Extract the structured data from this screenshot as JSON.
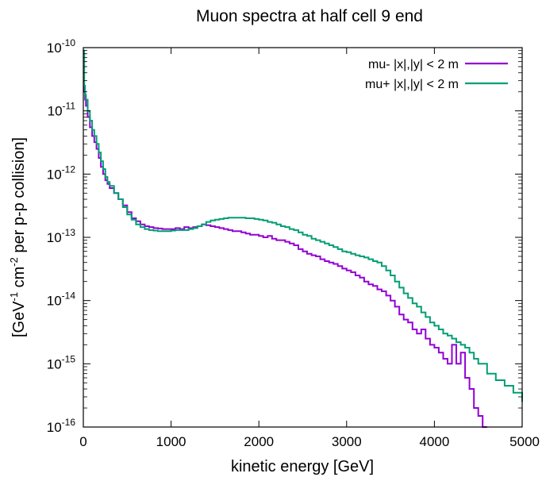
{
  "chart_data": {
    "type": "line",
    "title": "Muon spectra at half cell 9 end",
    "xlabel": "kinetic energy [GeV]",
    "ylabel": {
      "prefix": "[GeV",
      "sup1": "-1",
      "mid": " cm",
      "sup2": "-2",
      "suffix": " per p-p collision]"
    },
    "xlim": [
      0,
      5000
    ],
    "ylim": [
      1e-16,
      1e-10
    ],
    "yscale": "log",
    "grid": false,
    "legend_position": "top-right",
    "x_ticks": [
      {
        "value": 0,
        "label": "0"
      },
      {
        "value": 1000,
        "label": "1000"
      },
      {
        "value": 2000,
        "label": "2000"
      },
      {
        "value": 3000,
        "label": "3000"
      },
      {
        "value": 4000,
        "label": "4000"
      },
      {
        "value": 5000,
        "label": "5000"
      }
    ],
    "y_ticks": [
      {
        "value": 1e-16,
        "base": "10",
        "exp": "-16"
      },
      {
        "value": 1e-15,
        "base": "10",
        "exp": "-15"
      },
      {
        "value": 1e-14,
        "base": "10",
        "exp": "-14"
      },
      {
        "value": 1e-13,
        "base": "10",
        "exp": "-13"
      },
      {
        "value": 1e-12,
        "base": "10",
        "exp": "-12"
      },
      {
        "value": 1e-11,
        "base": "10",
        "exp": "-11"
      },
      {
        "value": 1e-10,
        "base": "10",
        "exp": "-10"
      }
    ],
    "series": [
      {
        "name": "mu- |x|,|y| < 2 m",
        "color": "#9400d3",
        "x": [
          0,
          10,
          20,
          30,
          50,
          75,
          100,
          125,
          150,
          175,
          200,
          225,
          250,
          275,
          300,
          350,
          400,
          450,
          500,
          550,
          600,
          650,
          700,
          750,
          800,
          850,
          900,
          950,
          1000,
          1050,
          1100,
          1150,
          1200,
          1250,
          1300,
          1350,
          1400,
          1450,
          1500,
          1550,
          1600,
          1650,
          1700,
          1750,
          1800,
          1850,
          1900,
          1950,
          2000,
          2050,
          2100,
          2150,
          2200,
          2250,
          2300,
          2350,
          2400,
          2450,
          2500,
          2550,
          2600,
          2650,
          2700,
          2750,
          2800,
          2850,
          2900,
          2950,
          3000,
          3050,
          3100,
          3150,
          3200,
          3250,
          3300,
          3350,
          3400,
          3450,
          3500,
          3550,
          3600,
          3650,
          3700,
          3750,
          3800,
          3850,
          3900,
          3950,
          4000,
          4050,
          4100,
          4150,
          4200,
          4250,
          4300,
          4350,
          4400,
          4450,
          4500,
          4550
        ],
        "y": [
          8e-11,
          2e-11,
          1.5e-11,
          1.2e-11,
          8e-12,
          5.5e-12,
          4e-12,
          3.2e-12,
          2.5e-12,
          1.8e-12,
          1.3e-12,
          1e-12,
          8e-13,
          7e-13,
          6e-13,
          5e-13,
          4e-13,
          3.2e-13,
          2.5e-13,
          2e-13,
          1.8e-13,
          1.6e-13,
          1.5e-13,
          1.45e-13,
          1.4e-13,
          1.38e-13,
          1.35e-13,
          1.35e-13,
          1.35e-13,
          1.4e-13,
          1.35e-13,
          1.45e-13,
          1.4e-13,
          1.45e-13,
          1.5e-13,
          1.6e-13,
          1.55e-13,
          1.5e-13,
          1.45e-13,
          1.4e-13,
          1.35e-13,
          1.3e-13,
          1.25e-13,
          1.25e-13,
          1.2e-13,
          1.15e-13,
          1.1e-13,
          1.1e-13,
          1.05e-13,
          1e-13,
          1.05e-13,
          9.5e-14,
          9e-14,
          9e-14,
          8.5e-14,
          8e-14,
          7.5e-14,
          6.5e-14,
          6e-14,
          5.5e-14,
          5.2e-14,
          5e-14,
          4.5e-14,
          4.2e-14,
          4e-14,
          3.8e-14,
          3.5e-14,
          3.2e-14,
          3e-14,
          2.8e-14,
          2.5e-14,
          2.3e-14,
          2e-14,
          1.8e-14,
          1.7e-14,
          1.5e-14,
          1.4e-14,
          1.2e-14,
          1e-14,
          8e-15,
          6e-15,
          5e-15,
          4.5e-15,
          3.5e-15,
          3e-15,
          3.5e-15,
          2.5e-15,
          2e-15,
          1.8e-15,
          1.5e-15,
          1.2e-15,
          1e-15,
          2e-15,
          1e-15,
          1.5e-15,
          6e-16,
          4e-16,
          2e-16,
          1.5e-16,
          1e-16
        ]
      },
      {
        "name": "mu+ |x|,|y| < 2 m",
        "color": "#009e73",
        "x": [
          0,
          10,
          20,
          30,
          50,
          75,
          100,
          125,
          150,
          175,
          200,
          225,
          250,
          275,
          300,
          350,
          400,
          450,
          500,
          550,
          600,
          650,
          700,
          750,
          800,
          850,
          900,
          950,
          1000,
          1050,
          1100,
          1150,
          1200,
          1250,
          1300,
          1350,
          1400,
          1450,
          1500,
          1550,
          1600,
          1650,
          1700,
          1750,
          1800,
          1850,
          1900,
          1950,
          2000,
          2050,
          2100,
          2150,
          2200,
          2250,
          2300,
          2350,
          2400,
          2450,
          2500,
          2550,
          2600,
          2650,
          2700,
          2750,
          2800,
          2850,
          2900,
          2950,
          3000,
          3050,
          3100,
          3150,
          3200,
          3250,
          3300,
          3350,
          3400,
          3450,
          3500,
          3550,
          3600,
          3650,
          3700,
          3750,
          3800,
          3850,
          3900,
          3950,
          4000,
          4050,
          4100,
          4150,
          4200,
          4250,
          4300,
          4350,
          4400,
          4450,
          4500,
          4600,
          4700,
          4800,
          4900,
          5000
        ],
        "y": [
          9e-11,
          2.5e-11,
          1.8e-11,
          1.5e-11,
          1e-11,
          7e-12,
          5e-12,
          4e-12,
          3e-12,
          2.2e-12,
          1.6e-12,
          1.2e-12,
          9e-13,
          7.5e-13,
          6.5e-13,
          5e-13,
          4e-13,
          3e-13,
          2.3e-13,
          1.9e-13,
          1.6e-13,
          1.45e-13,
          1.35e-13,
          1.3e-13,
          1.28e-13,
          1.25e-13,
          1.25e-13,
          1.25e-13,
          1.28e-13,
          1.3e-13,
          1.3e-13,
          1.3e-13,
          1.35e-13,
          1.4e-13,
          1.5e-13,
          1.6e-13,
          1.75e-13,
          1.85e-13,
          1.9e-13,
          1.95e-13,
          2e-13,
          2.05e-13,
          2.05e-13,
          2.05e-13,
          2.05e-13,
          2e-13,
          2e-13,
          1.95e-13,
          1.9e-13,
          1.85e-13,
          1.75e-13,
          1.7e-13,
          1.6e-13,
          1.5e-13,
          1.45e-13,
          1.35e-13,
          1.3e-13,
          1.2e-13,
          1.1e-13,
          1.05e-13,
          9.5e-14,
          9e-14,
          8.5e-14,
          8e-14,
          7.5e-14,
          7e-14,
          6.5e-14,
          6e-14,
          5.8e-14,
          5.5e-14,
          5.2e-14,
          5e-14,
          4.8e-14,
          4.5e-14,
          4.2e-14,
          4e-14,
          3.5e-14,
          3e-14,
          2.5e-14,
          2e-14,
          1.6e-14,
          1.3e-14,
          1.1e-14,
          9e-15,
          8e-15,
          6.5e-15,
          5.5e-15,
          4.5e-15,
          4e-15,
          3.5e-15,
          3e-15,
          2.8e-15,
          2.5e-15,
          2.2e-15,
          2e-15,
          1.8e-15,
          1.5e-15,
          1.2e-15,
          1e-15,
          7e-16,
          5.5e-16,
          4.5e-16,
          3.5e-16,
          2.5e-16
        ]
      }
    ]
  }
}
